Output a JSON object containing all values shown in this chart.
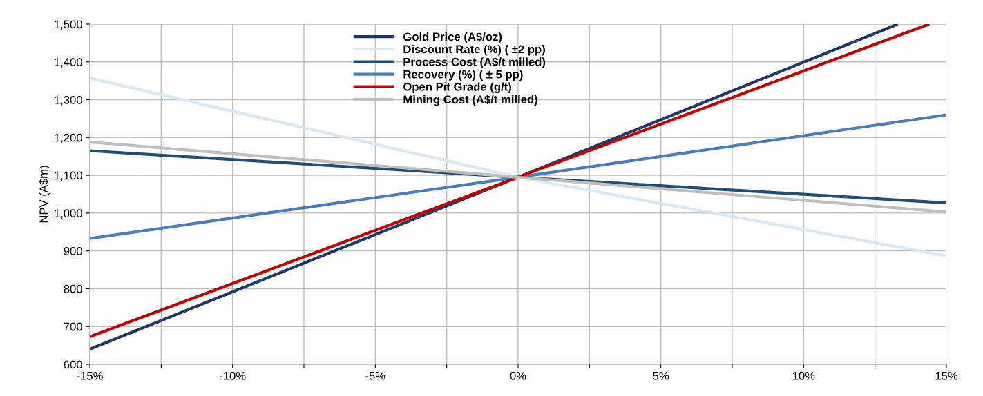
{
  "chart_data": {
    "type": "line",
    "ylabel": "NPV (A$m)",
    "series": [
      {
        "name": "Gold Price (A$/oz)",
        "color": "#1f3864",
        "x": [
          -15,
          0,
          13.3
        ],
        "values": [
          640,
          1095,
          1500
        ]
      },
      {
        "name": "Discount Rate (%) ( ±2 pp)",
        "color": "#dae8f5",
        "x": [
          -15,
          0,
          15
        ],
        "values": [
          1357,
          1095,
          887
        ]
      },
      {
        "name": "Process Cost (A$/t milled)",
        "color": "#1f4e79",
        "x": [
          -15,
          0,
          15
        ],
        "values": [
          1165,
          1095,
          1027
        ]
      },
      {
        "name": "Recovery (%) ( ± 5 pp)",
        "color": "#4a7ebb",
        "x": [
          -15,
          0,
          15
        ],
        "values": [
          933,
          1095,
          1260
        ]
      },
      {
        "name": "Open Pit Grade (g/t)",
        "color": "#c00000",
        "x": [
          -15,
          0,
          14.4
        ],
        "values": [
          673,
          1095,
          1500
        ]
      },
      {
        "name": "Mining Cost (A$/t milled)",
        "color": "#bfbfbf",
        "x": [
          -15,
          0,
          15
        ],
        "values": [
          1188,
          1095,
          1003
        ]
      }
    ],
    "xlim": [
      -15,
      15
    ],
    "xticks": [
      {
        "value": -15,
        "label": "-15%"
      },
      {
        "value": -12.5,
        "label": null
      },
      {
        "value": -10,
        "label": "-10%"
      },
      {
        "value": -7.5,
        "label": null
      },
      {
        "value": -5,
        "label": "-5%"
      },
      {
        "value": -2.5,
        "label": null
      },
      {
        "value": 0,
        "label": "0%"
      },
      {
        "value": 2.5,
        "label": null
      },
      {
        "value": 5,
        "label": "5%"
      },
      {
        "value": 7.5,
        "label": null
      },
      {
        "value": 10,
        "label": "10%"
      },
      {
        "value": 12.5,
        "label": null
      },
      {
        "value": 15,
        "label": "15%"
      }
    ],
    "ylim": [
      600,
      1500
    ],
    "yticks": [
      600,
      700,
      800,
      900,
      {
        "value": 1000,
        "label": "1,000"
      },
      {
        "value": 1100,
        "label": "1,100"
      },
      {
        "value": 1200,
        "label": "1,200"
      },
      {
        "value": 1300,
        "label": "1,300"
      },
      {
        "value": 1400,
        "label": "1,400"
      },
      {
        "value": 1500,
        "label": "1,500"
      }
    ],
    "grid": true,
    "legend": "top",
    "marker": "none",
    "line_style": "solid"
  }
}
